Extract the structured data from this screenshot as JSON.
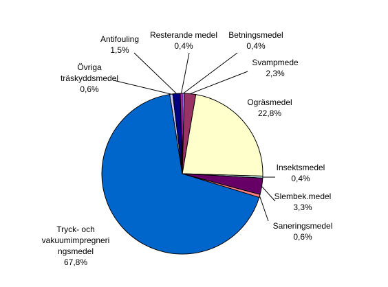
{
  "chart_data": {
    "type": "pie",
    "categories": [
      "Betningsmedel",
      "Svampmede",
      "Ogräsmedel",
      "Insektsmedel",
      "Slembek.medel",
      "Saneringsmedel",
      "Tryck- och\nvakuumimpregneri\nngsmedel",
      "Övriga\nträskyddsmedel",
      "Antifouling",
      "Resterande medel"
    ],
    "values": [
      0.4,
      2.3,
      22.8,
      0.4,
      3.3,
      0.6,
      67.8,
      0.6,
      1.5,
      0.4
    ],
    "value_labels": [
      "0,4%",
      "2,3%",
      "22,8%",
      "0,4%",
      "3,3%",
      "0,6%",
      "67,8%",
      "0,6%",
      "1,5%",
      "0,4%"
    ],
    "colors": [
      "#9999ff",
      "#993366",
      "#ffffcc",
      "#ccffff",
      "#660066",
      "#ff8080",
      "#0066cc",
      "#ccccff",
      "#000080",
      "#ff00ff"
    ]
  }
}
